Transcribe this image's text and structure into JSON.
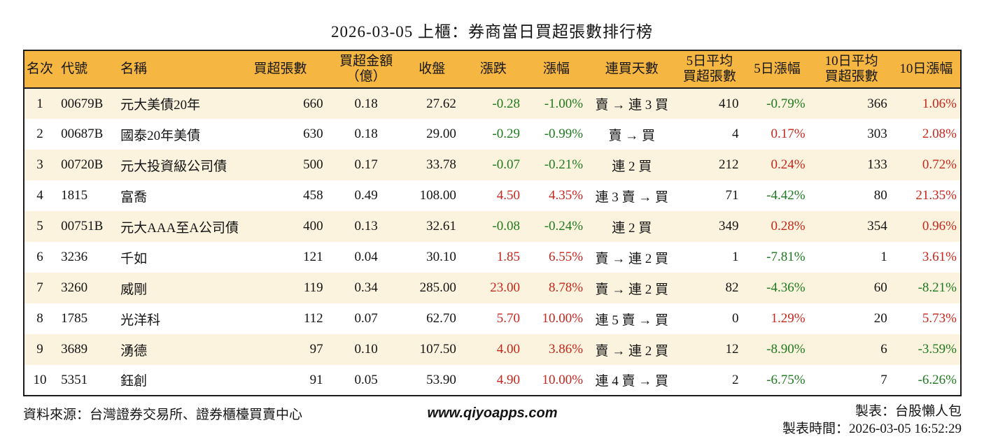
{
  "title": "2026-03-05 上櫃：券商當日買超張數排行榜",
  "colors": {
    "up": "#c5271d",
    "down": "#1f7a1f",
    "header_bg": "#f5b642",
    "row_alt_bg": "#fcf3de",
    "border": "#1c1c1c"
  },
  "chart_data": {
    "type": "table",
    "title": "2026-03-05 上櫃：券商當日買超張數排行榜",
    "columns": [
      {
        "key": "rank",
        "label": "名次"
      },
      {
        "key": "code",
        "label": "代號"
      },
      {
        "key": "name",
        "label": "名稱"
      },
      {
        "key": "net_lots",
        "label": "買超張數"
      },
      {
        "key": "net_amount",
        "label": "買超金額",
        "label2": "（億）"
      },
      {
        "key": "close",
        "label": "收盤"
      },
      {
        "key": "change",
        "label": "漲跌"
      },
      {
        "key": "change_pct",
        "label": "漲幅"
      },
      {
        "key": "streak",
        "label": "連買天數"
      },
      {
        "key": "avg5",
        "label": "5日平均",
        "label2": "買超張數"
      },
      {
        "key": "pct5",
        "label": "5日漲幅"
      },
      {
        "key": "avg10",
        "label": "10日平均",
        "label2": "買超張數"
      },
      {
        "key": "pct10",
        "label": "10日漲幅"
      }
    ],
    "rows": [
      {
        "rank": "1",
        "code": "00679B",
        "name": "元大美債20年",
        "net_lots": "660",
        "net_amount": "0.18",
        "close": "27.62",
        "change": {
          "v": "-0.28",
          "c": "down"
        },
        "change_pct": {
          "v": "-1.00%",
          "c": "down"
        },
        "streak": "賣 → 連 3 買",
        "avg5": "410",
        "pct5": {
          "v": "-0.79%",
          "c": "down"
        },
        "avg10": "366",
        "pct10": {
          "v": "1.06%",
          "c": "up"
        }
      },
      {
        "rank": "2",
        "code": "00687B",
        "name": "國泰20年美債",
        "net_lots": "630",
        "net_amount": "0.18",
        "close": "29.00",
        "change": {
          "v": "-0.29",
          "c": "down"
        },
        "change_pct": {
          "v": "-0.99%",
          "c": "down"
        },
        "streak": "賣 → 買",
        "avg5": "4",
        "pct5": {
          "v": "0.17%",
          "c": "up"
        },
        "avg10": "303",
        "pct10": {
          "v": "2.08%",
          "c": "up"
        }
      },
      {
        "rank": "3",
        "code": "00720B",
        "name": "元大投資級公司債",
        "net_lots": "500",
        "net_amount": "0.17",
        "close": "33.78",
        "change": {
          "v": "-0.07",
          "c": "down"
        },
        "change_pct": {
          "v": "-0.21%",
          "c": "down"
        },
        "streak": "連 2 買",
        "avg5": "212",
        "pct5": {
          "v": "0.24%",
          "c": "up"
        },
        "avg10": "133",
        "pct10": {
          "v": "0.72%",
          "c": "up"
        }
      },
      {
        "rank": "4",
        "code": "1815",
        "name": "富喬",
        "net_lots": "458",
        "net_amount": "0.49",
        "close": "108.00",
        "change": {
          "v": "4.50",
          "c": "up"
        },
        "change_pct": {
          "v": "4.35%",
          "c": "up"
        },
        "streak": "連 3 賣 → 買",
        "avg5": "71",
        "pct5": {
          "v": "-4.42%",
          "c": "down"
        },
        "avg10": "80",
        "pct10": {
          "v": "21.35%",
          "c": "up"
        }
      },
      {
        "rank": "5",
        "code": "00751B",
        "name": "元大AAA至A公司債",
        "net_lots": "400",
        "net_amount": "0.13",
        "close": "32.61",
        "change": {
          "v": "-0.08",
          "c": "down"
        },
        "change_pct": {
          "v": "-0.24%",
          "c": "down"
        },
        "streak": "連 2 買",
        "avg5": "349",
        "pct5": {
          "v": "0.28%",
          "c": "up"
        },
        "avg10": "354",
        "pct10": {
          "v": "0.96%",
          "c": "up"
        }
      },
      {
        "rank": "6",
        "code": "3236",
        "name": "千如",
        "net_lots": "121",
        "net_amount": "0.04",
        "close": "30.10",
        "change": {
          "v": "1.85",
          "c": "up"
        },
        "change_pct": {
          "v": "6.55%",
          "c": "up"
        },
        "streak": "賣 → 連 2 買",
        "avg5": "1",
        "pct5": {
          "v": "-7.81%",
          "c": "down"
        },
        "avg10": "1",
        "pct10": {
          "v": "3.61%",
          "c": "up"
        }
      },
      {
        "rank": "7",
        "code": "3260",
        "name": "威剛",
        "net_lots": "119",
        "net_amount": "0.34",
        "close": "285.00",
        "change": {
          "v": "23.00",
          "c": "up"
        },
        "change_pct": {
          "v": "8.78%",
          "c": "up"
        },
        "streak": "賣 → 連 2 買",
        "avg5": "82",
        "pct5": {
          "v": "-4.36%",
          "c": "down"
        },
        "avg10": "60",
        "pct10": {
          "v": "-8.21%",
          "c": "down"
        }
      },
      {
        "rank": "8",
        "code": "1785",
        "name": "光洋科",
        "net_lots": "112",
        "net_amount": "0.07",
        "close": "62.70",
        "change": {
          "v": "5.70",
          "c": "up"
        },
        "change_pct": {
          "v": "10.00%",
          "c": "up"
        },
        "streak": "連 5 賣 → 買",
        "avg5": "0",
        "pct5": {
          "v": "1.29%",
          "c": "up"
        },
        "avg10": "20",
        "pct10": {
          "v": "5.73%",
          "c": "up"
        }
      },
      {
        "rank": "9",
        "code": "3689",
        "name": "湧德",
        "net_lots": "97",
        "net_amount": "0.10",
        "close": "107.50",
        "change": {
          "v": "4.00",
          "c": "up"
        },
        "change_pct": {
          "v": "3.86%",
          "c": "up"
        },
        "streak": "賣 → 連 2 買",
        "avg5": "12",
        "pct5": {
          "v": "-8.90%",
          "c": "down"
        },
        "avg10": "6",
        "pct10": {
          "v": "-3.59%",
          "c": "down"
        }
      },
      {
        "rank": "10",
        "code": "5351",
        "name": "鈺創",
        "net_lots": "91",
        "net_amount": "0.05",
        "close": "53.90",
        "change": {
          "v": "4.90",
          "c": "up"
        },
        "change_pct": {
          "v": "10.00%",
          "c": "up"
        },
        "streak": "連 4 賣 → 買",
        "avg5": "2",
        "pct5": {
          "v": "-6.75%",
          "c": "down"
        },
        "avg10": "7",
        "pct10": {
          "v": "-6.26%",
          "c": "down"
        }
      }
    ]
  },
  "footer": {
    "source": "資料來源：台灣證券交易所、證券櫃檯買賣中心",
    "website": "www.qiyoapps.com",
    "maker": "製表：台股懶人包",
    "timestamp": "製表時間：2026-03-05 16:52:29"
  }
}
